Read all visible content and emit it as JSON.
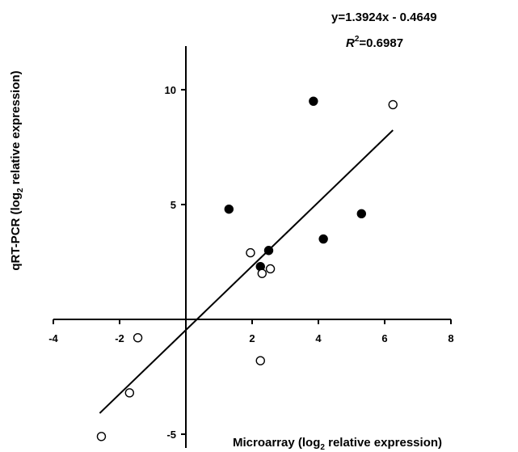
{
  "chart_data": {
    "type": "scatter",
    "title": "",
    "xlabel": {
      "prefix": "Microarray (log",
      "sub": "2",
      "suffix": " relative expression)"
    },
    "ylabel": {
      "prefix": "qRT-PCR (log",
      "sub": "2",
      "suffix": " relative expression)"
    },
    "xlim": [
      -4,
      8
    ],
    "ylim": [
      -5.6,
      11.9
    ],
    "x_ticks": [
      -4,
      -2,
      2,
      4,
      6,
      8
    ],
    "x_tick_labels": [
      "-4",
      "-2",
      "2",
      "4",
      "6",
      "8"
    ],
    "y_ticks": [
      -5,
      5,
      10
    ],
    "y_tick_labels": [
      "-5",
      "5",
      "10"
    ],
    "grid": false,
    "legend": "none",
    "equation": {
      "text": "y=1.3924x - 0.4649",
      "r_label": "R",
      "r_sup": "2",
      "r_value": "=0.6987"
    },
    "trendline": {
      "slope": 1.3924,
      "intercept": -0.4649,
      "x_range": [
        -2.6,
        6.25
      ]
    },
    "series": [
      {
        "marker": "filled",
        "color": "#000000",
        "points": [
          {
            "x": 3.85,
            "y": 9.5
          },
          {
            "x": 1.3,
            "y": 4.8
          },
          {
            "x": 5.3,
            "y": 4.6
          },
          {
            "x": 4.15,
            "y": 3.5
          },
          {
            "x": 2.5,
            "y": 3.0
          },
          {
            "x": 2.25,
            "y": 2.3
          }
        ]
      },
      {
        "marker": "open",
        "color": "#000000",
        "points": [
          {
            "x": 6.25,
            "y": 9.35
          },
          {
            "x": 1.95,
            "y": 2.9
          },
          {
            "x": 2.55,
            "y": 2.2
          },
          {
            "x": 2.3,
            "y": 2.0
          },
          {
            "x": -1.45,
            "y": -0.8
          },
          {
            "x": 2.25,
            "y": -1.8
          },
          {
            "x": -1.7,
            "y": -3.2
          },
          {
            "x": -2.55,
            "y": -5.1
          }
        ]
      }
    ]
  }
}
